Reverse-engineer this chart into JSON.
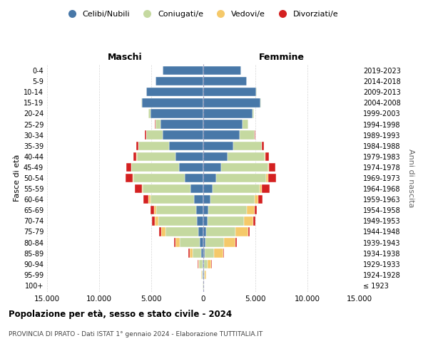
{
  "age_groups": [
    "100+",
    "95-99",
    "90-94",
    "85-89",
    "80-84",
    "75-79",
    "70-74",
    "65-69",
    "60-64",
    "55-59",
    "50-54",
    "45-49",
    "40-44",
    "35-39",
    "30-34",
    "25-29",
    "20-24",
    "15-19",
    "10-14",
    "5-9",
    "0-4"
  ],
  "birth_years": [
    "≤ 1923",
    "1924-1928",
    "1929-1933",
    "1934-1938",
    "1939-1943",
    "1944-1948",
    "1949-1953",
    "1954-1958",
    "1959-1963",
    "1964-1968",
    "1969-1973",
    "1974-1978",
    "1979-1983",
    "1984-1988",
    "1989-1993",
    "1994-1998",
    "1999-2003",
    "2004-2008",
    "2009-2013",
    "2014-2018",
    "2019-2023"
  ],
  "m_cel": [
    30,
    60,
    100,
    200,
    350,
    500,
    600,
    700,
    900,
    1200,
    1800,
    2300,
    2700,
    3300,
    3900,
    4100,
    5100,
    5900,
    5500,
    4600,
    3900
  ],
  "m_con": [
    20,
    90,
    280,
    850,
    1900,
    3100,
    3700,
    3800,
    4200,
    4600,
    4900,
    4600,
    3700,
    2900,
    1600,
    500,
    150,
    40,
    10,
    5,
    2
  ],
  "m_ved": [
    5,
    30,
    110,
    280,
    400,
    450,
    350,
    250,
    140,
    80,
    50,
    30,
    20,
    10,
    5,
    3,
    2,
    1,
    0,
    0,
    0
  ],
  "m_div": [
    2,
    10,
    30,
    80,
    150,
    200,
    280,
    350,
    500,
    700,
    700,
    500,
    300,
    200,
    100,
    30,
    10,
    5,
    2,
    1,
    0
  ],
  "f_nub": [
    30,
    60,
    100,
    150,
    200,
    300,
    400,
    500,
    700,
    900,
    1200,
    1700,
    2300,
    2900,
    3500,
    3800,
    4700,
    5500,
    5100,
    4200,
    3600
  ],
  "f_con": [
    20,
    100,
    300,
    900,
    1800,
    2800,
    3500,
    3700,
    4200,
    4500,
    4800,
    4500,
    3600,
    2700,
    1400,
    500,
    150,
    40,
    10,
    5,
    2
  ],
  "f_ved": [
    5,
    80,
    380,
    850,
    1100,
    1200,
    900,
    700,
    400,
    250,
    200,
    120,
    50,
    20,
    10,
    5,
    3,
    1,
    0,
    0,
    0
  ],
  "f_div": [
    2,
    10,
    30,
    60,
    100,
    150,
    200,
    250,
    400,
    700,
    800,
    600,
    350,
    200,
    100,
    30,
    10,
    5,
    2,
    1,
    0
  ],
  "colors": {
    "celibi": "#4878a8",
    "coniugati": "#c5d9a0",
    "vedovi": "#f5c96a",
    "divorziati": "#d42020"
  },
  "xlim": 15000,
  "title": "Popolazione per età, sesso e stato civile - 2024",
  "subtitle": "PROVINCIA DI PRATO - Dati ISTAT 1° gennaio 2024 - Elaborazione TUTTITALIA.IT",
  "label_maschi": "Maschi",
  "label_femmine": "Femmine",
  "ylabel_left": "Fasce di età",
  "ylabel_right": "Anni di nascita",
  "legend_labels": [
    "Celibi/Nubili",
    "Coniugati/e",
    "Vedovi/e",
    "Divorziati/e"
  ],
  "bg": "#ffffff",
  "grid_color": "#cccccc"
}
